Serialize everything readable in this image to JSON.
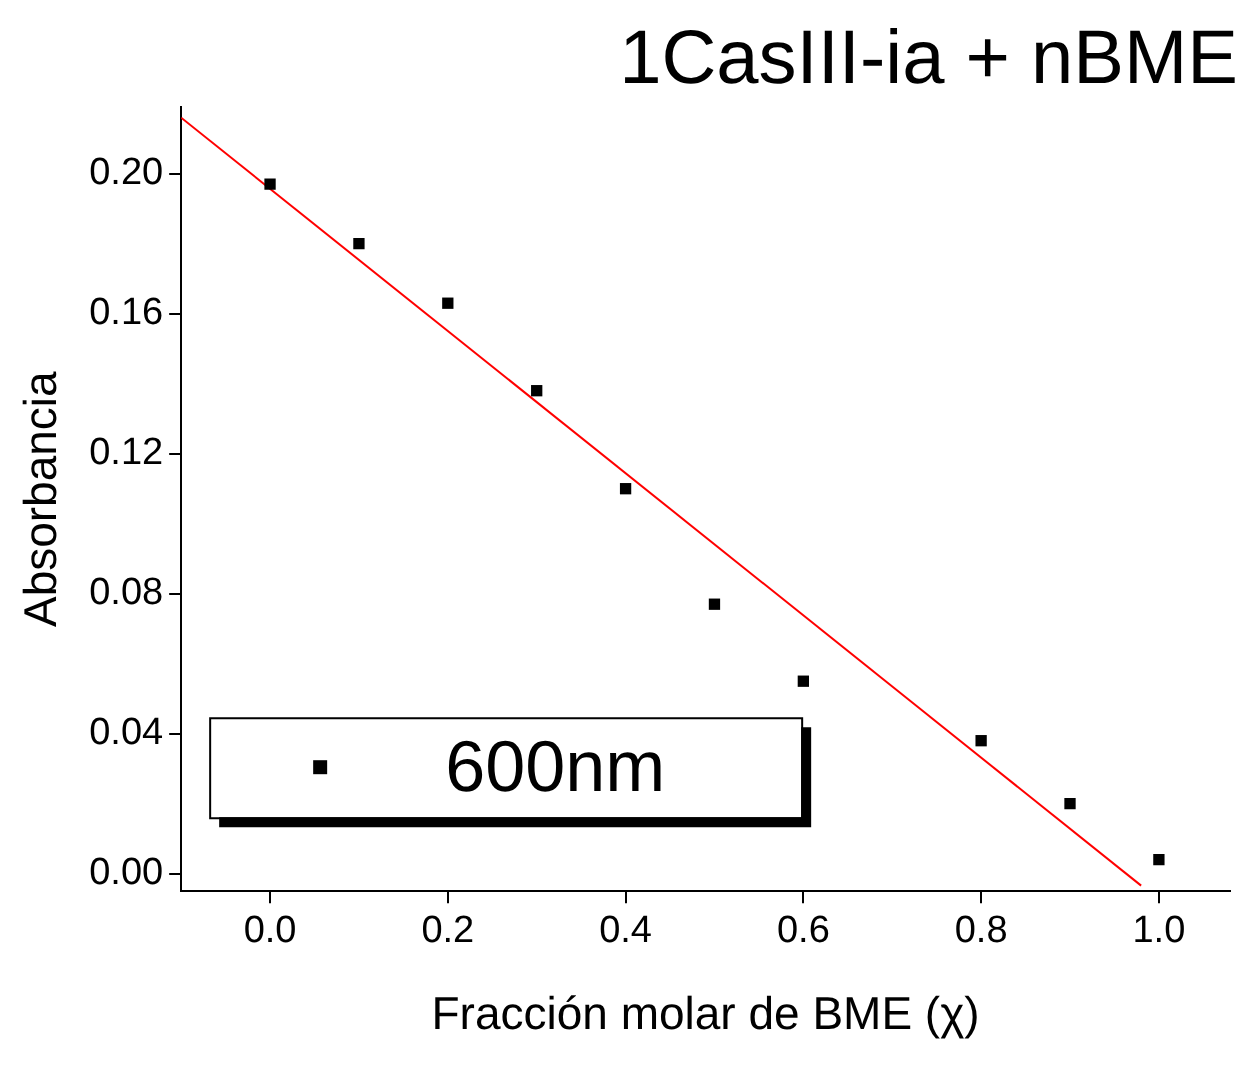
{
  "chart_data": {
    "type": "scatter",
    "title": "1CasIII-ia + nBME",
    "xlabel": "Fracción molar de BME (χ)",
    "ylabel": "Absorbancia",
    "xlim": [
      -0.1,
      1.08
    ],
    "ylim": [
      -0.005,
      0.219
    ],
    "xticks": [
      {
        "value": 0,
        "label": "0.0"
      },
      {
        "value": 0.2,
        "label": "0.2"
      },
      {
        "value": 0.4,
        "label": "0.4"
      },
      {
        "value": 0.6,
        "label": "0.6"
      },
      {
        "value": 0.8,
        "label": "0.8"
      },
      {
        "value": 1,
        "label": "1.0"
      }
    ],
    "yticks": [
      {
        "value": 0,
        "label": "0.00"
      },
      {
        "value": 0.04,
        "label": "0.04"
      },
      {
        "value": 0.08,
        "label": "0.08"
      },
      {
        "value": 0.12,
        "label": "0.12"
      },
      {
        "value": 0.16,
        "label": "0.16"
      },
      {
        "value": 0.2,
        "label": "0.20"
      }
    ],
    "grid": false,
    "legend": "bottom left",
    "series": [
      {
        "name": "600nm",
        "marker": "square",
        "color": "#000000",
        "x": [
          0,
          0.1,
          0.2,
          0.3,
          0.4,
          0.5,
          0.6,
          0.8,
          0.9,
          1.0
        ],
        "values": [
          0.197,
          0.18,
          0.163,
          0.138,
          0.11,
          0.077,
          0.055,
          0.038,
          0.02,
          0.004
        ]
      },
      {
        "type": "line",
        "marker": "none",
        "color": "#ff0000",
        "x": [
          -0.1,
          0.98
        ],
        "values": [
          0.216,
          -0.0034
        ]
      }
    ]
  }
}
